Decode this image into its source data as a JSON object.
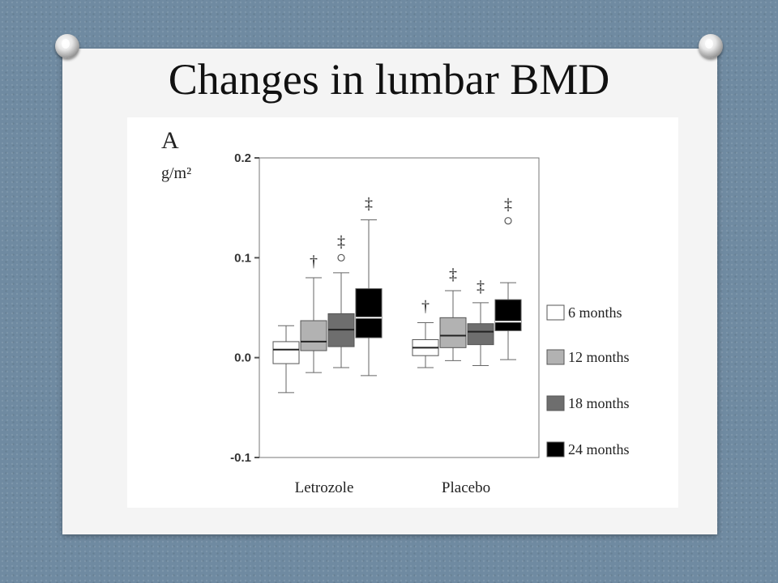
{
  "slide": {
    "title": "Changes in lumbar BMD"
  },
  "chart_data": {
    "type": "box",
    "panel_label": "A",
    "ylabel": "g/m²",
    "ylim": [
      -0.1,
      0.2
    ],
    "y_ticks": [
      0.2,
      0.1,
      0.0,
      -0.1
    ],
    "y_tick_labels": [
      "0.2",
      "0.1",
      "0.0",
      "-0.1"
    ],
    "categories": [
      "Letrozole",
      "Placebo"
    ],
    "legend_position": "right",
    "series": [
      {
        "name": "6 months",
        "color": "#ffffff",
        "boxes": [
          {
            "min": -0.035,
            "q1": -0.006,
            "median": 0.008,
            "q3": 0.016,
            "max": 0.032,
            "outliers": [],
            "marker": ""
          },
          {
            "min": -0.01,
            "q1": 0.002,
            "median": 0.01,
            "q3": 0.018,
            "max": 0.035,
            "outliers": [],
            "marker": "†"
          }
        ]
      },
      {
        "name": "12 months",
        "color": "#b2b2b2",
        "boxes": [
          {
            "min": -0.015,
            "q1": 0.007,
            "median": 0.016,
            "q3": 0.037,
            "max": 0.08,
            "outliers": [],
            "marker": "†"
          },
          {
            "min": -0.003,
            "q1": 0.01,
            "median": 0.022,
            "q3": 0.04,
            "max": 0.067,
            "outliers": [],
            "marker": "‡"
          }
        ]
      },
      {
        "name": "18 months",
        "color": "#6e6e6e",
        "boxes": [
          {
            "min": -0.01,
            "q1": 0.011,
            "median": 0.028,
            "q3": 0.044,
            "max": 0.085,
            "outliers": [
              0.1
            ],
            "marker": "‡"
          },
          {
            "min": -0.008,
            "q1": 0.013,
            "median": 0.026,
            "q3": 0.034,
            "max": 0.055,
            "outliers": [],
            "marker": "‡"
          }
        ]
      },
      {
        "name": "24 months",
        "color": "#000000",
        "boxes": [
          {
            "min": -0.018,
            "q1": 0.02,
            "median": 0.04,
            "q3": 0.069,
            "max": 0.138,
            "outliers": [],
            "marker": "‡"
          },
          {
            "min": -0.002,
            "q1": 0.027,
            "median": 0.036,
            "q3": 0.058,
            "max": 0.075,
            "outliers": [
              0.137
            ],
            "marker": "‡"
          }
        ]
      }
    ]
  }
}
